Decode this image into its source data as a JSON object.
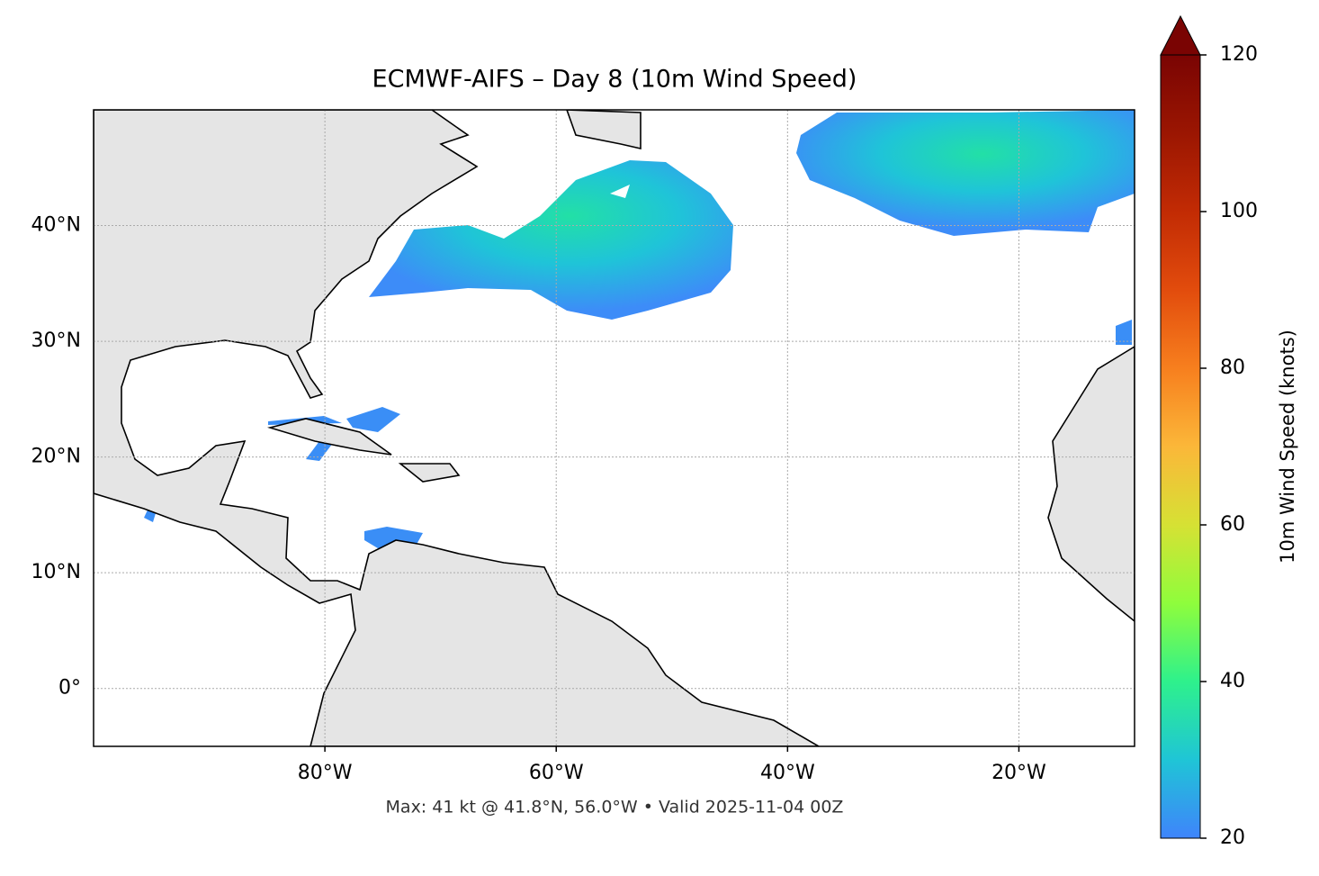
{
  "chart_data": {
    "type": "map",
    "title": "ECMWF-AIFS – Day 8 (10m Wind Speed)",
    "note": "Max: 41 kt @ 41.8°N, 56.0°W • Valid 2025-11-04 00Z",
    "xlim": [
      -100,
      -10
    ],
    "ylim": [
      -5,
      50
    ],
    "xticks": [
      {
        "value": -80,
        "label": "80°W"
      },
      {
        "value": -60,
        "label": "60°W"
      },
      {
        "value": -40,
        "label": "40°W"
      },
      {
        "value": -20,
        "label": "20°W"
      }
    ],
    "yticks": [
      {
        "value": 40,
        "label": "40°N"
      },
      {
        "value": 30,
        "label": "30°N"
      },
      {
        "value": 20,
        "label": "20°N"
      },
      {
        "value": 10,
        "label": "10°N"
      },
      {
        "value": 0,
        "label": "0°"
      }
    ],
    "grid": true,
    "colorbar": {
      "label": "10m Wind Speed (knots)",
      "lim": [
        20,
        120
      ],
      "ticks": [
        20,
        40,
        60,
        80,
        100,
        120
      ]
    }
  }
}
